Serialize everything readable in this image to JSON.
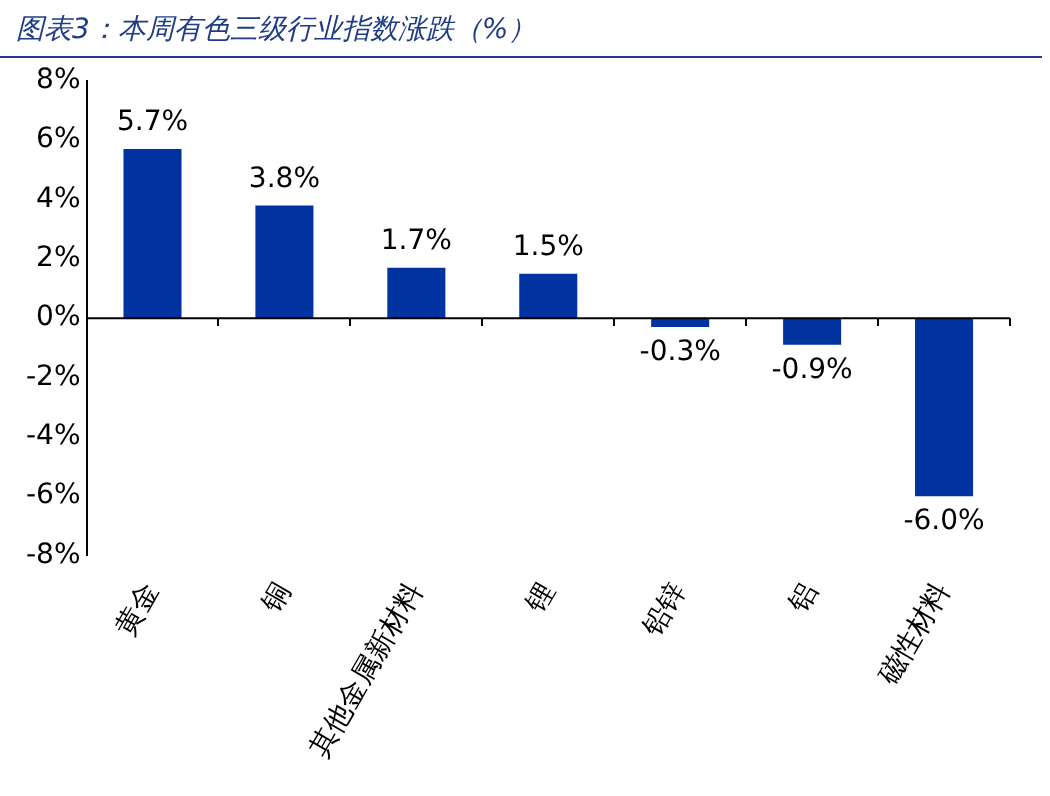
{
  "chart_data": {
    "type": "bar",
    "title": "图表3：本周有色三级行业指数涨跌（%）",
    "categories": [
      "黄金",
      "铜",
      "其他金属新材料",
      "锂",
      "铅锌",
      "铝",
      "磁性材料"
    ],
    "values": [
      5.7,
      3.8,
      1.7,
      1.5,
      -0.3,
      -0.9,
      -6.0
    ],
    "value_labels": [
      "5.7%",
      "3.8%",
      "1.7%",
      "1.5%",
      "-0.3%",
      "-0.9%",
      "-6.0%"
    ],
    "color": "#0033a0",
    "ylim": [
      -8,
      8
    ],
    "yticks": [
      {
        "value": -8,
        "label": "-8%"
      },
      {
        "value": -6,
        "label": "-6%"
      },
      {
        "value": -4,
        "label": "-4%"
      },
      {
        "value": -2,
        "label": "-2%"
      },
      {
        "value": 0,
        "label": "0%"
      },
      {
        "value": 2,
        "label": "2%"
      },
      {
        "value": 4,
        "label": "4%"
      },
      {
        "value": 6,
        "label": "6%"
      },
      {
        "value": 8,
        "label": "8%"
      }
    ],
    "ref_lines": [
      {
        "axis": "y",
        "value": 0,
        "color": "#000000"
      }
    ],
    "grid": false,
    "legend": false
  }
}
